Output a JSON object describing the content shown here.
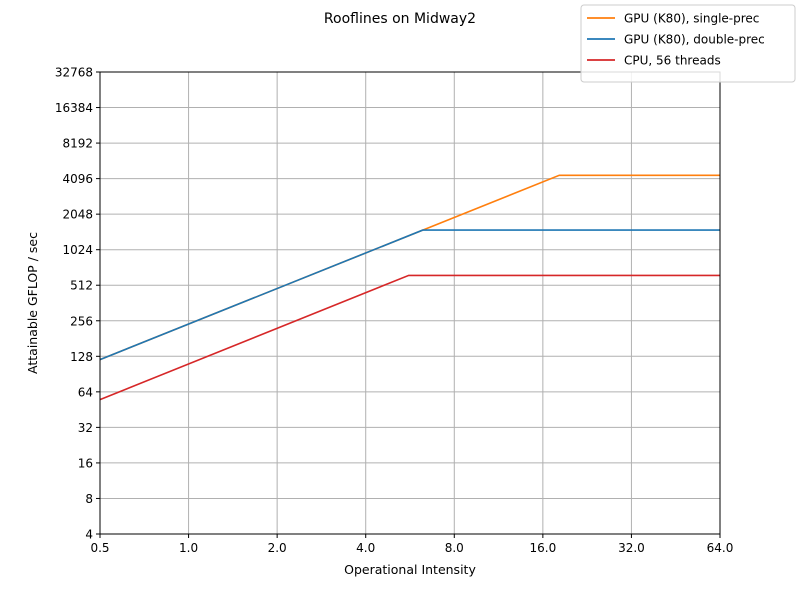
{
  "chart_data": {
    "type": "line",
    "title": "Rooflines on Midway2",
    "xlabel": "Operational Intensity",
    "ylabel": "Attainable GFLOP / sec",
    "xscale": "log2",
    "yscale": "log2",
    "xlim": [
      0.5,
      64.0
    ],
    "ylim": [
      4,
      32768
    ],
    "xticks": [
      0.5,
      1.0,
      2.0,
      4.0,
      8.0,
      16.0,
      32.0,
      64.0
    ],
    "xtick_labels": [
      "0.5",
      "1.0",
      "2.0",
      "4.0",
      "8.0",
      "16.0",
      "32.0",
      "64.0"
    ],
    "yticks": [
      4,
      8,
      16,
      32,
      64,
      128,
      256,
      512,
      1024,
      2048,
      4096,
      8192,
      16384,
      32768
    ],
    "ytick_labels": [
      "4",
      "8",
      "16",
      "32",
      "64",
      "128",
      "256",
      "512",
      "1024",
      "2048",
      "4096",
      "8192",
      "16384",
      "32768"
    ],
    "grid": true,
    "legend_position": "top-right",
    "series": [
      {
        "name": "GPU (K80), single-prec",
        "color": "#ff7f0e",
        "x": [
          0.5,
          18.2,
          64.0
        ],
        "y": [
          120,
          4370,
          4370
        ]
      },
      {
        "name": "GPU (K80), double-prec",
        "color": "#1f77b4",
        "x": [
          0.5,
          6.25,
          64.0
        ],
        "y": [
          120,
          1500,
          1500
        ]
      },
      {
        "name": "CPU, 56 threads",
        "color": "#d62728",
        "x": [
          0.5,
          5.6,
          64.0
        ],
        "y": [
          55,
          620,
          620
        ]
      }
    ]
  }
}
